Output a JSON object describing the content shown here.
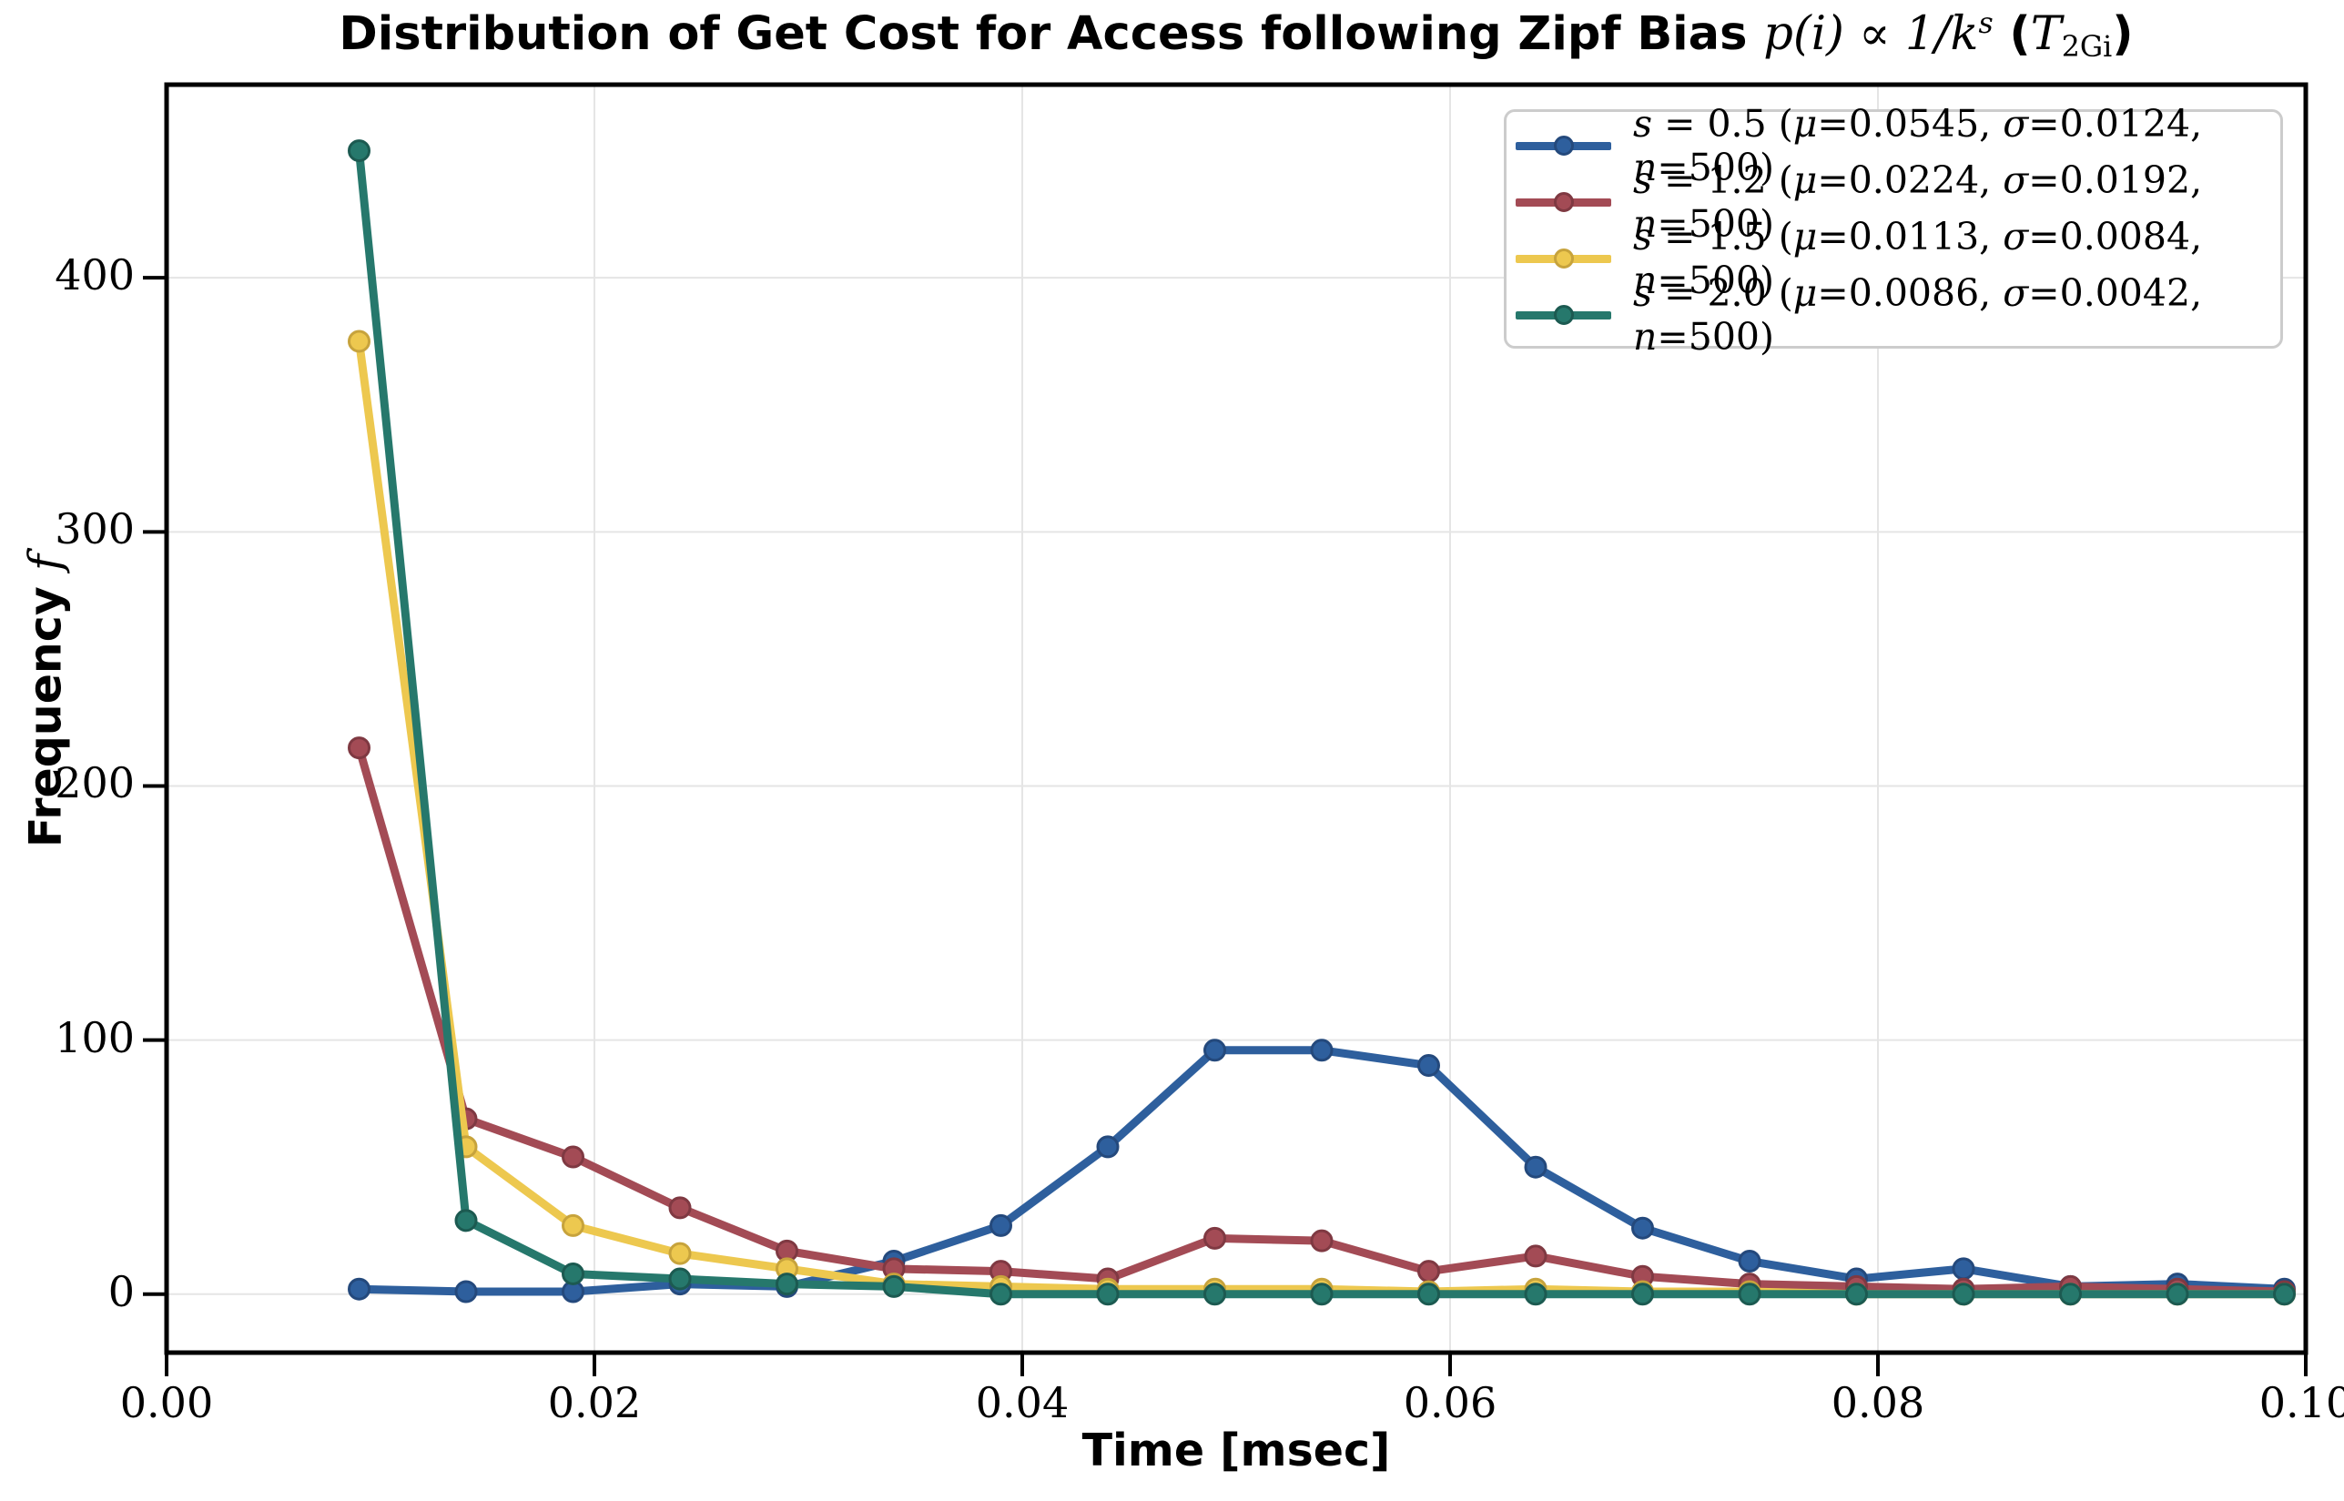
{
  "chart_data": {
    "type": "line",
    "title": "Distribution of Get Cost for Access following Zipf Bias p(i) ∝ 1/k^s (T_2Gi)",
    "title_parts": [
      {
        "text": "Distribution of Get Cost for Access following Zipf Bias ",
        "style": "bold"
      },
      {
        "text": "p(i) ∝ 1/k",
        "style": "math"
      },
      {
        "text": "s",
        "style": "sup"
      },
      {
        "text": " (",
        "style": "bold"
      },
      {
        "text": "T",
        "style": "math"
      },
      {
        "text": "2Gi",
        "style": "sub"
      },
      {
        "text": ")",
        "style": "bold"
      }
    ],
    "xlabel": "Time [msec]",
    "ylabel": "Frequency f",
    "ylabel_parts": [
      {
        "text": "Frequency ",
        "style": "bold"
      },
      {
        "text": "f",
        "style": "math"
      }
    ],
    "xlim": [
      0.0,
      0.1
    ],
    "ylim": [
      -23,
      476
    ],
    "grid": true,
    "legend_position": "upper right",
    "xticks": [
      {
        "value": 0.0,
        "label": "0.00"
      },
      {
        "value": 0.02,
        "label": "0.02"
      },
      {
        "value": 0.04,
        "label": "0.04"
      },
      {
        "value": 0.06,
        "label": "0.06"
      },
      {
        "value": 0.08,
        "label": "0.08"
      },
      {
        "value": 0.1,
        "label": "0.10"
      }
    ],
    "yticks": [
      {
        "value": 0,
        "label": "0"
      },
      {
        "value": 100,
        "label": "100"
      },
      {
        "value": 200,
        "label": "200"
      },
      {
        "value": 300,
        "label": "300"
      },
      {
        "value": 400,
        "label": "400"
      }
    ],
    "x": [
      0.009,
      0.014,
      0.019,
      0.024,
      0.029,
      0.034,
      0.039,
      0.044,
      0.049,
      0.054,
      0.059,
      0.064,
      0.069,
      0.074,
      0.079,
      0.084,
      0.089,
      0.094,
      0.099
    ],
    "series": [
      {
        "name": "s = 0.5 (μ=0.0545, σ=0.0124, n=500)",
        "color": "#2e5f9d",
        "edge_color": "#24497c",
        "values": [
          2,
          1,
          1,
          4,
          3,
          13,
          27,
          58,
          96,
          96,
          90,
          50,
          26,
          13,
          6,
          10,
          3,
          4,
          2
        ]
      },
      {
        "name": "s = 1.2 (μ=0.0224, σ=0.0192, n=500)",
        "color": "#a34b55",
        "edge_color": "#7f3942",
        "values": [
          215,
          69,
          54,
          34,
          17,
          10,
          9,
          6,
          22,
          21,
          9,
          15,
          7,
          4,
          3,
          2,
          3,
          2,
          1
        ]
      },
      {
        "name": "s = 1.5 (μ=0.0113, σ=0.0084, n=500)",
        "color": "#edc84f",
        "edge_color": "#c7a33c",
        "values": [
          375,
          58,
          27,
          16,
          10,
          4,
          3,
          2,
          2,
          2,
          1,
          2,
          1,
          1,
          0,
          0,
          0,
          0,
          0
        ]
      },
      {
        "name": "s = 2.0 (μ=0.0086, σ=0.0042, n=500)",
        "color": "#26786c",
        "edge_color": "#1c5a51",
        "values": [
          450,
          29,
          8,
          6,
          4,
          3,
          0,
          0,
          0,
          0,
          0,
          0,
          0,
          0,
          0,
          0,
          0,
          0,
          0
        ]
      }
    ],
    "colors": {
      "background": "#ffffff",
      "gridline": "#e5e5e5",
      "spine": "#000000",
      "legend_border": "#cccccc"
    }
  }
}
